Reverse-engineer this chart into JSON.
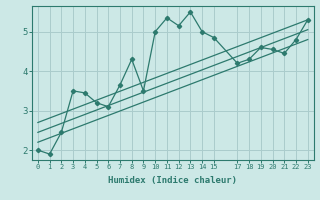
{
  "xlabel": "Humidex (Indice chaleur)",
  "bg_color": "#cce8e6",
  "grid_color": "#aacccc",
  "line_color": "#2d7a6e",
  "x_data": [
    0,
    1,
    2,
    3,
    4,
    5,
    6,
    7,
    8,
    9,
    10,
    11,
    12,
    13,
    14,
    15,
    17,
    18,
    19,
    20,
    21,
    22,
    23
  ],
  "y_data": [
    2.0,
    1.9,
    2.45,
    3.5,
    3.45,
    3.2,
    3.1,
    3.65,
    4.3,
    3.5,
    5.0,
    5.35,
    5.15,
    5.5,
    5.0,
    4.85,
    4.2,
    4.3,
    4.6,
    4.55,
    4.45,
    4.8,
    5.3
  ],
  "reg_line1_x": [
    0,
    23
  ],
  "reg_line1_y": [
    2.7,
    5.3
  ],
  "reg_line2_x": [
    0,
    23
  ],
  "reg_line2_y": [
    2.2,
    4.8
  ],
  "reg_line3_x": [
    0,
    23
  ],
  "reg_line3_y": [
    2.45,
    5.05
  ],
  "ylim": [
    1.75,
    5.65
  ],
  "xlim": [
    -0.5,
    23.5
  ],
  "yticks": [
    2,
    3,
    4,
    5
  ],
  "xticks": [
    0,
    1,
    2,
    3,
    4,
    5,
    6,
    7,
    8,
    9,
    10,
    11,
    12,
    13,
    14,
    15,
    17,
    18,
    19,
    20,
    21,
    22,
    23
  ]
}
